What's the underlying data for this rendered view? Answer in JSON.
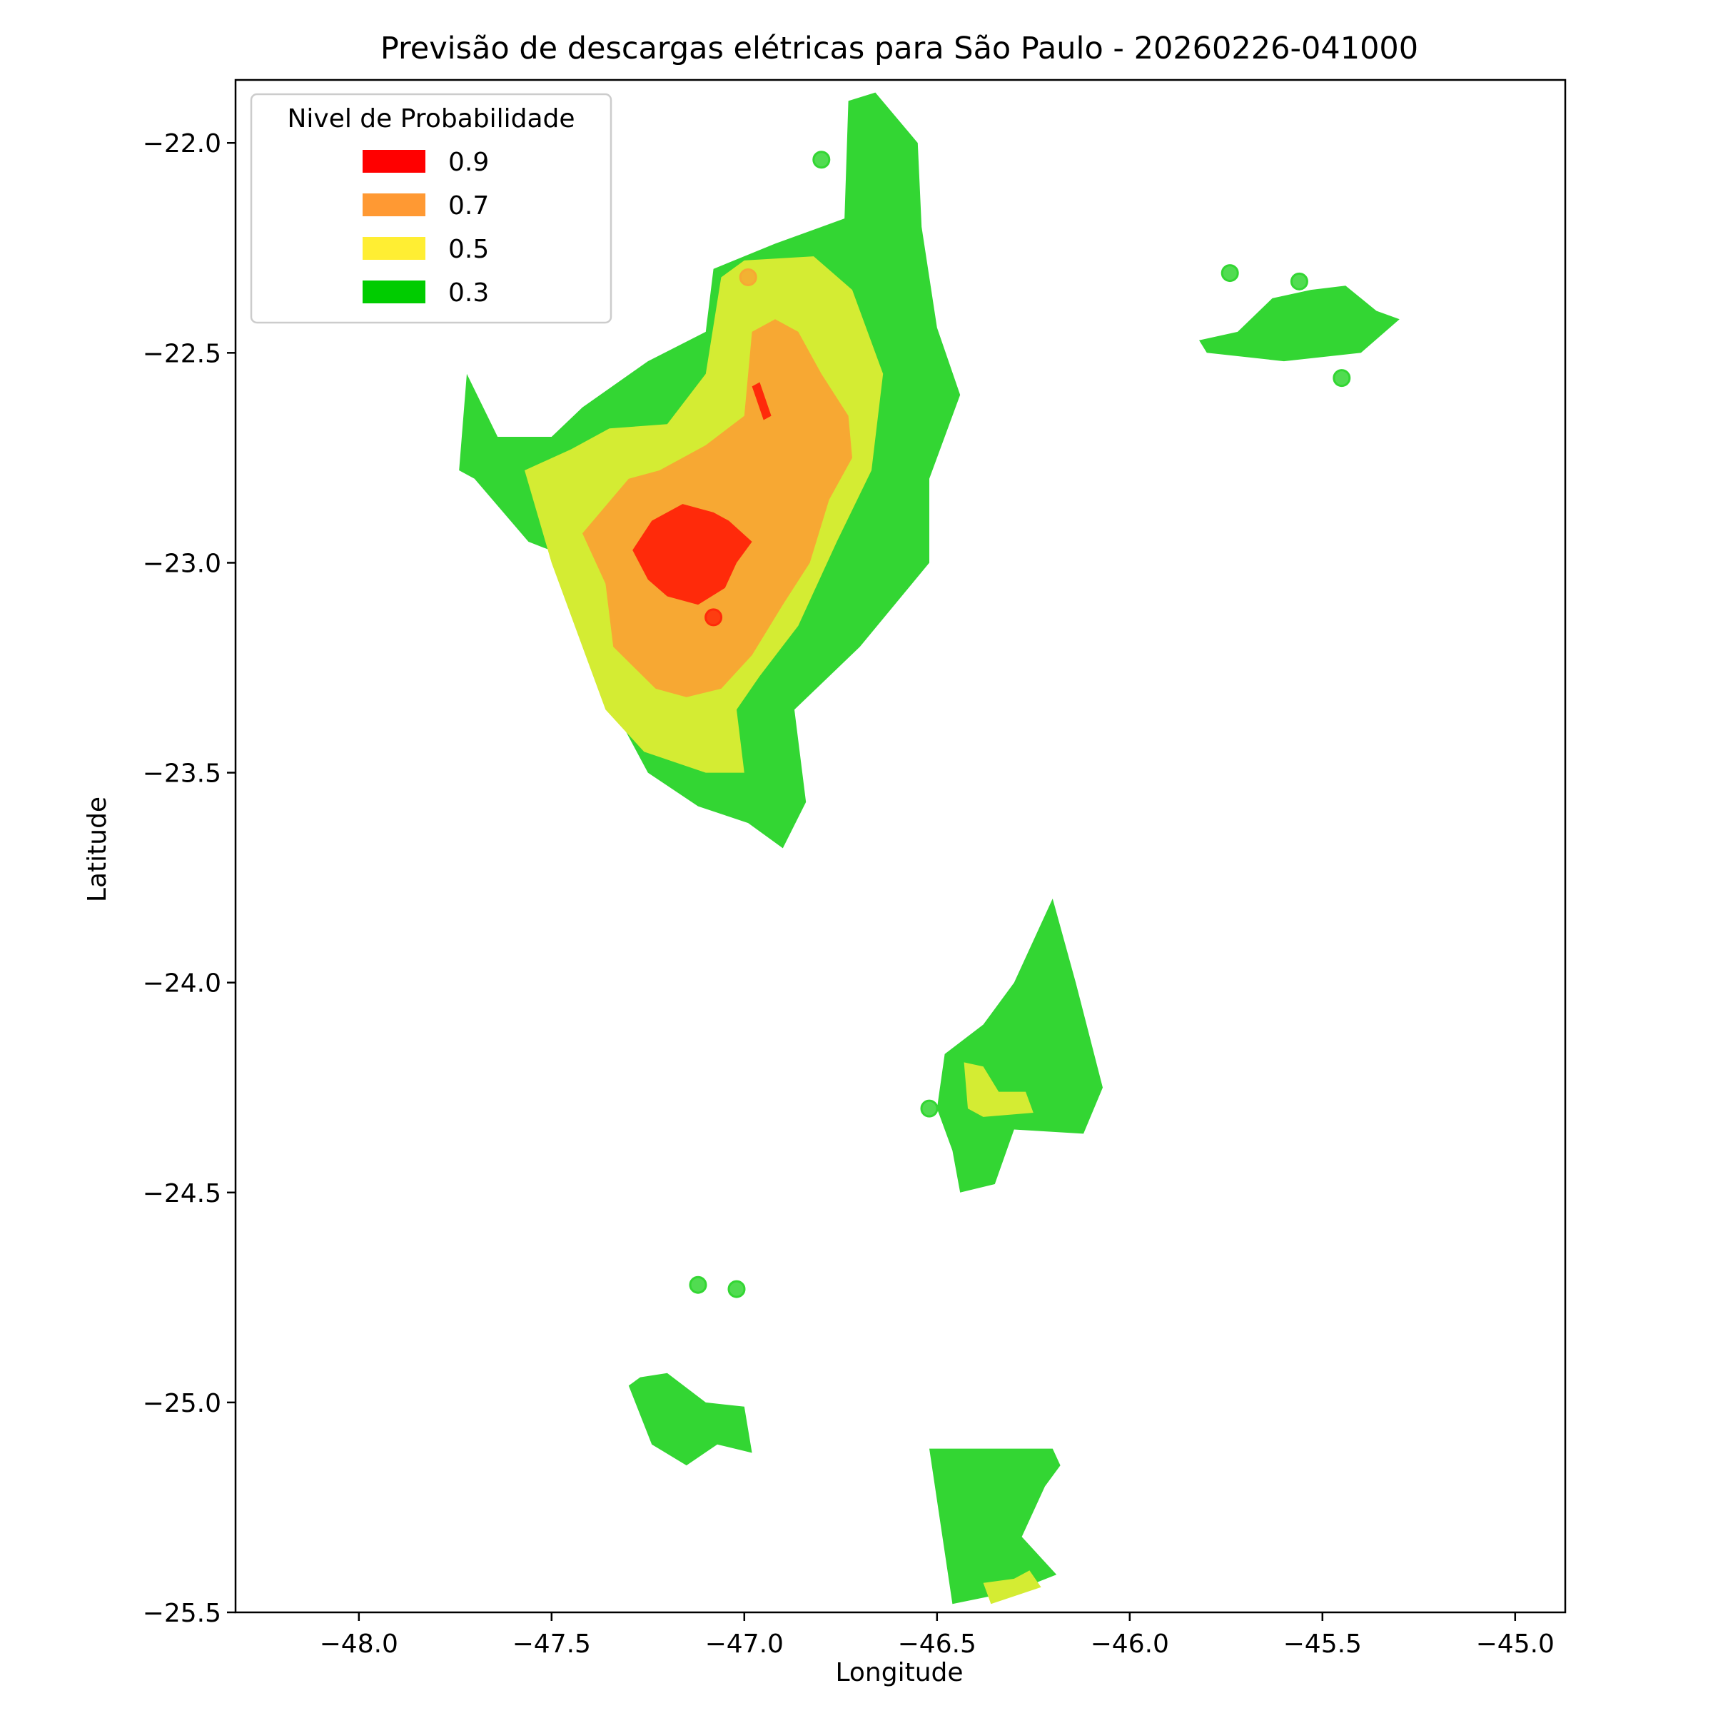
{
  "chart_data": {
    "type": "heatmap",
    "title": "Previsão de descargas elétricas para São Paulo - 20260226-041000",
    "xlabel": "Longitude",
    "ylabel": "Latitude",
    "xlim": [
      -48.32,
      -44.87
    ],
    "ylim": [
      -25.5,
      -21.85
    ],
    "x_ticks": [
      -48.0,
      -47.5,
      -47.0,
      -46.5,
      -46.0,
      -45.5,
      -45.0
    ],
    "x_tick_labels": [
      "−48.0",
      "−47.5",
      "−47.0",
      "−46.5",
      "−46.0",
      "−45.5",
      "−45.0"
    ],
    "y_ticks": [
      -22.0,
      -22.5,
      -23.0,
      -23.5,
      -24.0,
      -24.5,
      -25.0,
      -25.5
    ],
    "y_tick_labels": [
      "−22.0",
      "−22.5",
      "−23.0",
      "−23.5",
      "−24.0",
      "−24.5",
      "−25.0",
      "−25.5"
    ],
    "grid": false,
    "legend": {
      "title": "Nivel de Probabilidade",
      "placement": "upper-left",
      "entries": [
        {
          "label": "0.9",
          "color": "#ff0000"
        },
        {
          "label": "0.7",
          "color": "#ff9933"
        },
        {
          "label": "0.5",
          "color": "#ffee33"
        },
        {
          "label": "0.3",
          "color": "#00cc00"
        }
      ]
    },
    "fill_colors": {
      "0.3": "#33d633",
      "0.5": "#d4ec33",
      "0.7": "#f7a833",
      "0.9": "#ff2a0a"
    },
    "regions": [
      {
        "level": "0.3",
        "coords": [
          [
            -47.72,
            -22.55
          ],
          [
            -47.64,
            -22.7
          ],
          [
            -47.5,
            -22.7
          ],
          [
            -47.42,
            -22.63
          ],
          [
            -47.25,
            -22.52
          ],
          [
            -47.1,
            -22.45
          ],
          [
            -47.08,
            -22.3
          ],
          [
            -46.92,
            -22.24
          ],
          [
            -46.74,
            -22.18
          ],
          [
            -46.73,
            -21.9
          ],
          [
            -46.66,
            -21.88
          ],
          [
            -46.55,
            -22.0
          ],
          [
            -46.54,
            -22.2
          ],
          [
            -46.5,
            -22.44
          ],
          [
            -46.44,
            -22.6
          ],
          [
            -46.52,
            -22.8
          ],
          [
            -46.52,
            -23.0
          ],
          [
            -46.7,
            -23.2
          ],
          [
            -46.87,
            -23.35
          ],
          [
            -46.84,
            -23.57
          ],
          [
            -46.9,
            -23.68
          ],
          [
            -46.99,
            -23.62
          ],
          [
            -47.12,
            -23.58
          ],
          [
            -47.25,
            -23.5
          ],
          [
            -47.32,
            -23.38
          ],
          [
            -47.42,
            -23.0
          ],
          [
            -47.56,
            -22.95
          ],
          [
            -47.7,
            -22.8
          ],
          [
            -47.74,
            -22.78
          ]
        ]
      },
      {
        "level": "0.3",
        "coords": [
          [
            -46.48,
            -24.17
          ],
          [
            -46.5,
            -24.3
          ],
          [
            -46.46,
            -24.4
          ],
          [
            -46.44,
            -24.5
          ],
          [
            -46.35,
            -24.48
          ],
          [
            -46.3,
            -24.35
          ],
          [
            -46.12,
            -24.36
          ],
          [
            -46.07,
            -24.25
          ],
          [
            -46.14,
            -24.0
          ],
          [
            -46.2,
            -23.8
          ],
          [
            -46.3,
            -24.0
          ],
          [
            -46.38,
            -24.1
          ]
        ]
      },
      {
        "level": "0.3",
        "coords": [
          [
            -46.52,
            -25.11
          ],
          [
            -46.46,
            -25.48
          ],
          [
            -46.3,
            -25.45
          ],
          [
            -46.19,
            -25.41
          ],
          [
            -46.28,
            -25.32
          ],
          [
            -46.22,
            -25.2
          ],
          [
            -46.18,
            -25.15
          ],
          [
            -46.2,
            -25.11
          ]
        ]
      },
      {
        "level": "0.3",
        "coords": [
          [
            -47.3,
            -24.96
          ],
          [
            -47.24,
            -25.1
          ],
          [
            -47.15,
            -25.15
          ],
          [
            -47.07,
            -25.1
          ],
          [
            -46.98,
            -25.12
          ],
          [
            -47.0,
            -25.01
          ],
          [
            -47.1,
            -25.0
          ],
          [
            -47.2,
            -24.93
          ],
          [
            -47.27,
            -24.94
          ]
        ]
      },
      {
        "level": "0.3",
        "coords": [
          [
            -45.82,
            -22.47
          ],
          [
            -45.72,
            -22.45
          ],
          [
            -45.63,
            -22.37
          ],
          [
            -45.53,
            -22.35
          ],
          [
            -45.44,
            -22.34
          ],
          [
            -45.36,
            -22.4
          ],
          [
            -45.3,
            -22.42
          ],
          [
            -45.4,
            -22.5
          ],
          [
            -45.6,
            -22.52
          ],
          [
            -45.8,
            -22.5
          ]
        ]
      },
      {
        "level": "0.5",
        "coords": [
          [
            -47.57,
            -22.78
          ],
          [
            -47.5,
            -23.0
          ],
          [
            -47.42,
            -23.2
          ],
          [
            -47.36,
            -23.35
          ],
          [
            -47.26,
            -23.45
          ],
          [
            -47.1,
            -23.5
          ],
          [
            -47.0,
            -23.5
          ],
          [
            -47.02,
            -23.35
          ],
          [
            -46.96,
            -23.27
          ],
          [
            -46.86,
            -23.15
          ],
          [
            -46.76,
            -22.95
          ],
          [
            -46.67,
            -22.78
          ],
          [
            -46.64,
            -22.55
          ],
          [
            -46.72,
            -22.35
          ],
          [
            -46.82,
            -22.27
          ],
          [
            -47.0,
            -22.28
          ],
          [
            -47.06,
            -22.32
          ],
          [
            -47.1,
            -22.55
          ],
          [
            -47.2,
            -22.67
          ],
          [
            -47.35,
            -22.68
          ],
          [
            -47.45,
            -22.73
          ]
        ]
      },
      {
        "level": "0.5",
        "coords": [
          [
            -46.43,
            -24.19
          ],
          [
            -46.38,
            -24.2
          ],
          [
            -46.34,
            -24.26
          ],
          [
            -46.27,
            -24.26
          ],
          [
            -46.25,
            -24.31
          ],
          [
            -46.38,
            -24.32
          ],
          [
            -46.42,
            -24.3
          ]
        ]
      },
      {
        "level": "0.5",
        "coords": [
          [
            -46.38,
            -25.43
          ],
          [
            -46.36,
            -25.48
          ],
          [
            -46.23,
            -25.44
          ],
          [
            -46.26,
            -25.4
          ],
          [
            -46.3,
            -25.42
          ]
        ]
      },
      {
        "level": "0.7",
        "coords": [
          [
            -47.42,
            -22.93
          ],
          [
            -47.36,
            -23.05
          ],
          [
            -47.34,
            -23.2
          ],
          [
            -47.23,
            -23.3
          ],
          [
            -47.15,
            -23.32
          ],
          [
            -47.06,
            -23.3
          ],
          [
            -46.98,
            -23.22
          ],
          [
            -46.9,
            -23.1
          ],
          [
            -46.83,
            -23.0
          ],
          [
            -46.78,
            -22.85
          ],
          [
            -46.72,
            -22.75
          ],
          [
            -46.73,
            -22.65
          ],
          [
            -46.8,
            -22.55
          ],
          [
            -46.86,
            -22.45
          ],
          [
            -46.92,
            -22.42
          ],
          [
            -46.98,
            -22.45
          ],
          [
            -47.0,
            -22.65
          ],
          [
            -47.1,
            -22.72
          ],
          [
            -47.22,
            -22.78
          ],
          [
            -47.3,
            -22.8
          ]
        ]
      },
      {
        "level": "0.9",
        "coords": [
          [
            -47.29,
            -22.97
          ],
          [
            -47.25,
            -23.04
          ],
          [
            -47.2,
            -23.08
          ],
          [
            -47.12,
            -23.1
          ],
          [
            -47.05,
            -23.06
          ],
          [
            -47.02,
            -23.0
          ],
          [
            -46.98,
            -22.95
          ],
          [
            -47.04,
            -22.9
          ],
          [
            -47.08,
            -22.88
          ],
          [
            -47.16,
            -22.86
          ],
          [
            -47.24,
            -22.9
          ]
        ]
      },
      {
        "level": "0.9",
        "coords": [
          [
            -46.98,
            -22.58
          ],
          [
            -46.96,
            -22.57
          ],
          [
            -46.93,
            -22.65
          ],
          [
            -46.95,
            -22.66
          ]
        ]
      }
    ],
    "points": [
      {
        "lon": -46.8,
        "lat": -22.04,
        "level": "0.3"
      },
      {
        "lon": -46.99,
        "lat": -22.32,
        "level": "0.7"
      },
      {
        "lon": -47.08,
        "lat": -23.13,
        "level": "0.9"
      },
      {
        "lon": -45.74,
        "lat": -22.31,
        "level": "0.3"
      },
      {
        "lon": -45.56,
        "lat": -22.33,
        "level": "0.3"
      },
      {
        "lon": -45.45,
        "lat": -22.56,
        "level": "0.3"
      },
      {
        "lon": -46.52,
        "lat": -24.3,
        "level": "0.3"
      },
      {
        "lon": -47.12,
        "lat": -24.72,
        "level": "0.3"
      },
      {
        "lon": -47.02,
        "lat": -24.73,
        "level": "0.3"
      }
    ]
  }
}
